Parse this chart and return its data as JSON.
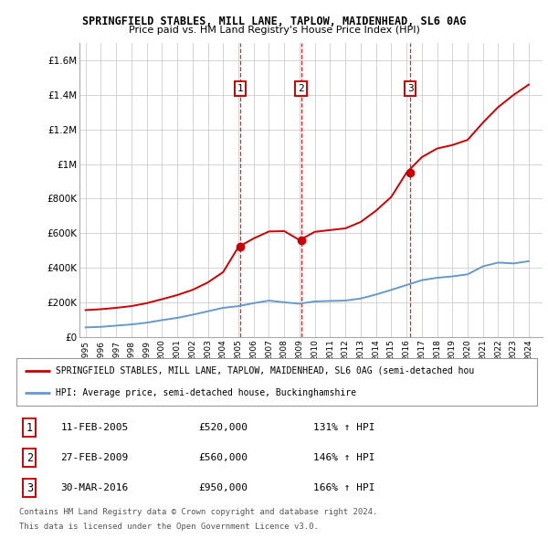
{
  "title1": "SPRINGFIELD STABLES, MILL LANE, TAPLOW, MAIDENHEAD, SL6 0AG",
  "title2": "Price paid vs. HM Land Registry's House Price Index (HPI)",
  "plot_bg": "#ffffff",
  "hpi_color": "#6699cc",
  "price_color": "#cc0000",
  "grid_color": "#cccccc",
  "ylim": [
    0,
    1700000
  ],
  "yticks": [
    0,
    200000,
    400000,
    600000,
    800000,
    1000000,
    1200000,
    1400000,
    1600000
  ],
  "ytick_labels": [
    "£0",
    "£200K",
    "£400K",
    "£600K",
    "£800K",
    "£1M",
    "£1.2M",
    "£1.4M",
    "£1.6M"
  ],
  "years_hpi": [
    1995,
    1996,
    1997,
    1998,
    1999,
    2000,
    2001,
    2002,
    2003,
    2004,
    2005,
    2006,
    2007,
    2008,
    2009,
    2010,
    2011,
    2012,
    2013,
    2014,
    2015,
    2016,
    2017,
    2018,
    2019,
    2020,
    2021,
    2022,
    2023,
    2024
  ],
  "hpi_vals": [
    55000,
    58000,
    65000,
    72000,
    82000,
    97000,
    110000,
    128000,
    148000,
    168000,
    178000,
    195000,
    210000,
    200000,
    192000,
    205000,
    208000,
    210000,
    222000,
    245000,
    272000,
    300000,
    328000,
    342000,
    350000,
    362000,
    408000,
    430000,
    425000,
    438000
  ],
  "years_price": [
    1995,
    1996,
    1997,
    1998,
    1999,
    2000,
    2001,
    2002,
    2003,
    2004,
    2005,
    2006,
    2007,
    2008,
    2009,
    2010,
    2011,
    2012,
    2013,
    2014,
    2015,
    2016,
    2017,
    2018,
    2019,
    2020,
    2021,
    2022,
    2023,
    2024
  ],
  "price_vals": [
    155000,
    160000,
    168000,
    178000,
    195000,
    218000,
    242000,
    272000,
    315000,
    375000,
    520000,
    570000,
    610000,
    612000,
    560000,
    608000,
    618000,
    628000,
    665000,
    730000,
    810000,
    950000,
    1040000,
    1090000,
    1110000,
    1140000,
    1240000,
    1330000,
    1400000,
    1460000
  ],
  "sale_points": [
    {
      "year": 2005.1,
      "price": 520000,
      "label": "1"
    },
    {
      "year": 2009.1,
      "price": 560000,
      "label": "2"
    },
    {
      "year": 2016.25,
      "price": 950000,
      "label": "3"
    }
  ],
  "table_rows": [
    {
      "num": "1",
      "date": "11-FEB-2005",
      "price": "£520,000",
      "hpi": "131% ↑ HPI"
    },
    {
      "num": "2",
      "date": "27-FEB-2009",
      "price": "£560,000",
      "hpi": "146% ↑ HPI"
    },
    {
      "num": "3",
      "date": "30-MAR-2016",
      "price": "£950,000",
      "hpi": "166% ↑ HPI"
    }
  ],
  "legend_line1": "SPRINGFIELD STABLES, MILL LANE, TAPLOW, MAIDENHEAD, SL6 0AG (semi-detached hou",
  "legend_line2": "HPI: Average price, semi-detached house, Buckinghamshire",
  "footer1": "Contains HM Land Registry data © Crown copyright and database right 2024.",
  "footer2": "This data is licensed under the Open Government Licence v3.0."
}
